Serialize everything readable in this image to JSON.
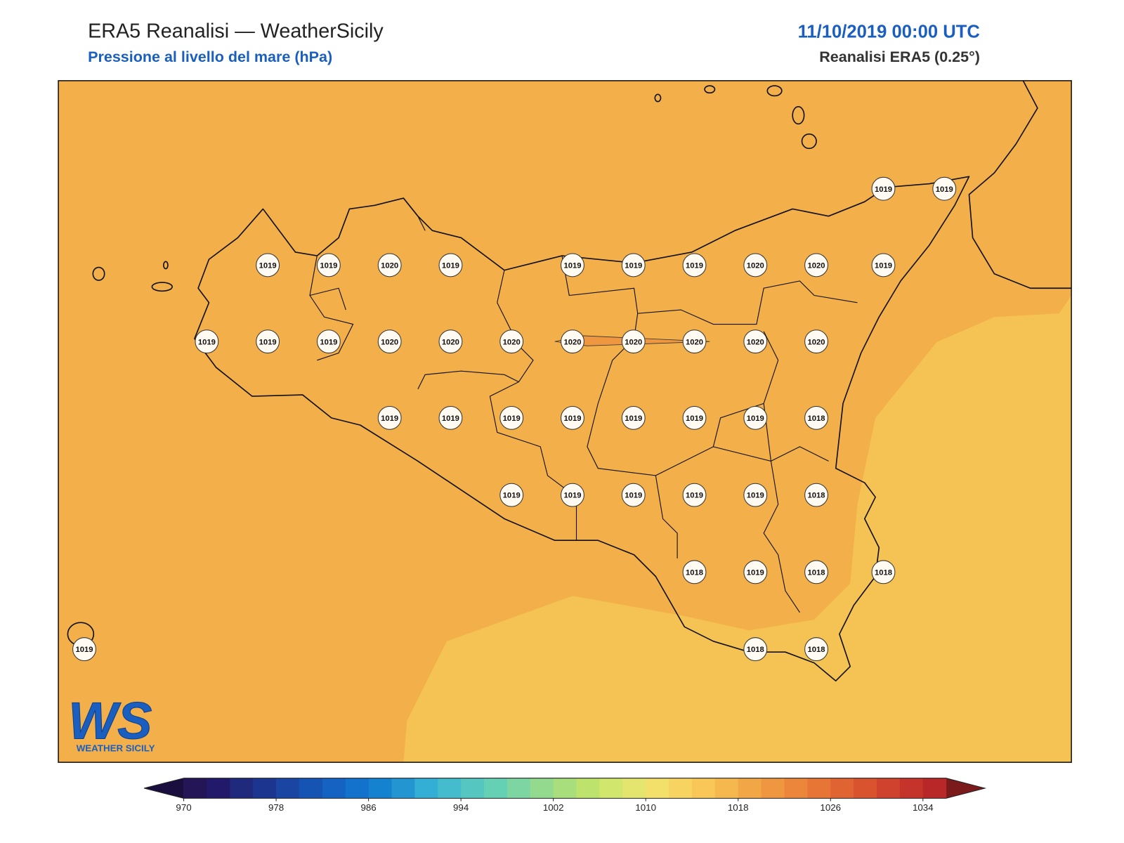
{
  "header": {
    "title": "ERA5 Reanalisi — WeatherSicily",
    "subtitle": "Pressione al livello del mare (hPa)",
    "datetime": "11/10/2019 00:00 UTC",
    "source": "Reanalisi ERA5 (0.25°)"
  },
  "stations": [
    1019,
    1019,
    1019,
    1019,
    1020,
    1019,
    1019,
    1019,
    1019,
    1020,
    1020,
    1019,
    1019,
    1019,
    1019,
    1020,
    1020,
    1020,
    1020,
    1020,
    1020,
    1020,
    1020,
    1019,
    1019,
    1019,
    1019,
    1019,
    1019,
    1019,
    1018,
    1019,
    1019,
    1019,
    1019,
    1019,
    1018,
    1018,
    1019,
    1018,
    1018,
    1019,
    1018,
    1018
  ],
  "colorbar": {
    "lim": [
      970,
      1036
    ],
    "ticks": [
      970,
      978,
      986,
      994,
      1002,
      1010,
      1018,
      1026,
      1034
    ],
    "colors": [
      "#231556",
      "#23196a",
      "#1f2a7c",
      "#1c3690",
      "#1a45a3",
      "#1654b4",
      "#1463c2",
      "#1372cc",
      "#1582cf",
      "#2396d2",
      "#33aed4",
      "#45bccd",
      "#56c6c1",
      "#66d0b4",
      "#7dd5a2",
      "#93da8e",
      "#a8de7c",
      "#bde36d",
      "#d1e66c",
      "#e3e56e",
      "#f2e06b",
      "#f7d462",
      "#f8c758",
      "#f4b84e",
      "#f1a746",
      "#ef9740",
      "#eb863b",
      "#e67536",
      "#e06432",
      "#d9532f",
      "#cf422d",
      "#c4342b",
      "#b82829"
    ],
    "under": "#1a0e3f",
    "over": "#7a1a1a"
  },
  "logo": {
    "mark": "WS",
    "name": "WEATHER SICILY"
  }
}
